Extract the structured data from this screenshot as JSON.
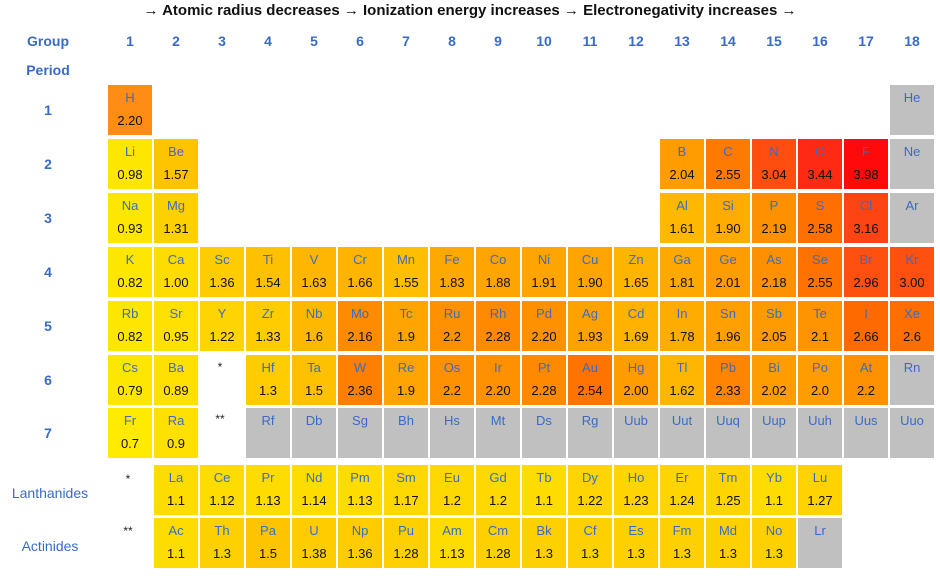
{
  "title": "→ Atomic radius decreases → Ionization energy increases → Electronegativity increases →",
  "group_label": "Group",
  "period_label": "Period",
  "groups": [
    "1",
    "2",
    "3",
    "4",
    "5",
    "6",
    "7",
    "8",
    "9",
    "10",
    "11",
    "12",
    "13",
    "14",
    "15",
    "16",
    "17",
    "18"
  ],
  "periods": [
    "1",
    "2",
    "3",
    "4",
    "5",
    "6",
    "7"
  ],
  "lanthanides_label": "Lanthanides",
  "actinides_label": "Actinides",
  "lanthanide_marker": "*",
  "actinide_marker": "**",
  "colors": {
    "yellow": "#ffe000",
    "amber": "#ffc000",
    "orange": "#ff9000",
    "dark_orange": "#ff6a10",
    "red": "#f03010",
    "gray": "#c0c0c0",
    "label_blue": "#3a6bc4"
  },
  "elements": [
    {
      "sym": "H",
      "en": "2.20",
      "row": 0,
      "col": 0,
      "c": "#ff8c14"
    },
    {
      "sym": "He",
      "en": "",
      "row": 0,
      "col": 17,
      "c": "#c0c0c0"
    },
    {
      "sym": "Li",
      "en": "0.98",
      "row": 1,
      "col": 0,
      "c": "#ffe600"
    },
    {
      "sym": "Be",
      "en": "1.57",
      "row": 1,
      "col": 1,
      "c": "#ffc400"
    },
    {
      "sym": "B",
      "en": "2.04",
      "row": 1,
      "col": 12,
      "c": "#ff9c00"
    },
    {
      "sym": "C",
      "en": "2.55",
      "row": 1,
      "col": 13,
      "c": "#ff7a00"
    },
    {
      "sym": "N",
      "en": "3.04",
      "row": 1,
      "col": 14,
      "c": "#ff4e10"
    },
    {
      "sym": "O",
      "en": "3.44",
      "row": 1,
      "col": 15,
      "c": "#ff2a14"
    },
    {
      "sym": "F",
      "en": "3.98",
      "row": 1,
      "col": 16,
      "c": "#ff0a0a"
    },
    {
      "sym": "Ne",
      "en": "",
      "row": 1,
      "col": 17,
      "c": "#c0c0c0"
    },
    {
      "sym": "Na",
      "en": "0.93",
      "row": 2,
      "col": 0,
      "c": "#ffe600"
    },
    {
      "sym": "Mg",
      "en": "1.31",
      "row": 2,
      "col": 1,
      "c": "#ffd000"
    },
    {
      "sym": "Al",
      "en": "1.61",
      "row": 2,
      "col": 12,
      "c": "#ffb800"
    },
    {
      "sym": "Si",
      "en": "1.90",
      "row": 2,
      "col": 13,
      "c": "#ffac00"
    },
    {
      "sym": "P",
      "en": "2.19",
      "row": 2,
      "col": 14,
      "c": "#ff9000"
    },
    {
      "sym": "S",
      "en": "2.58",
      "row": 2,
      "col": 15,
      "c": "#ff7000"
    },
    {
      "sym": "Cl",
      "en": "3.16",
      "row": 2,
      "col": 16,
      "c": "#ff4414"
    },
    {
      "sym": "Ar",
      "en": "",
      "row": 2,
      "col": 17,
      "c": "#c0c0c0"
    },
    {
      "sym": "K",
      "en": "0.82",
      "row": 3,
      "col": 0,
      "c": "#ffe600"
    },
    {
      "sym": "Ca",
      "en": "1.00",
      "row": 3,
      "col": 1,
      "c": "#ffdc00"
    },
    {
      "sym": "Sc",
      "en": "1.36",
      "row": 3,
      "col": 2,
      "c": "#ffcc00"
    },
    {
      "sym": "Ti",
      "en": "1.54",
      "row": 3,
      "col": 3,
      "c": "#ffc000"
    },
    {
      "sym": "V",
      "en": "1.63",
      "row": 3,
      "col": 4,
      "c": "#ffb600"
    },
    {
      "sym": "Cr",
      "en": "1.66",
      "row": 3,
      "col": 5,
      "c": "#ffb400"
    },
    {
      "sym": "Mn",
      "en": "1.55",
      "row": 3,
      "col": 6,
      "c": "#ffbe00"
    },
    {
      "sym": "Fe",
      "en": "1.83",
      "row": 3,
      "col": 7,
      "c": "#ffa800"
    },
    {
      "sym": "Co",
      "en": "1.88",
      "row": 3,
      "col": 8,
      "c": "#ffa400"
    },
    {
      "sym": "Ni",
      "en": "1.91",
      "row": 3,
      "col": 9,
      "c": "#ffa400"
    },
    {
      "sym": "Cu",
      "en": "1.90",
      "row": 3,
      "col": 10,
      "c": "#ffa400"
    },
    {
      "sym": "Zn",
      "en": "1.65",
      "row": 3,
      "col": 11,
      "c": "#ffb400"
    },
    {
      "sym": "Ga",
      "en": "1.81",
      "row": 3,
      "col": 12,
      "c": "#ffa800"
    },
    {
      "sym": "Ge",
      "en": "2.01",
      "row": 3,
      "col": 13,
      "c": "#ff9c00"
    },
    {
      "sym": "As",
      "en": "2.18",
      "row": 3,
      "col": 14,
      "c": "#ff9000"
    },
    {
      "sym": "Se",
      "en": "2.55",
      "row": 3,
      "col": 15,
      "c": "#ff7200"
    },
    {
      "sym": "Br",
      "en": "2.96",
      "row": 3,
      "col": 16,
      "c": "#ff5010"
    },
    {
      "sym": "Kr",
      "en": "3.00",
      "row": 3,
      "col": 17,
      "c": "#ff5010"
    },
    {
      "sym": "Rb",
      "en": "0.82",
      "row": 4,
      "col": 0,
      "c": "#ffe600"
    },
    {
      "sym": "Sr",
      "en": "0.95",
      "row": 4,
      "col": 1,
      "c": "#ffe000"
    },
    {
      "sym": "Y",
      "en": "1.22",
      "row": 4,
      "col": 2,
      "c": "#ffd400"
    },
    {
      "sym": "Zr",
      "en": "1.33",
      "row": 4,
      "col": 3,
      "c": "#ffcc00"
    },
    {
      "sym": "Nb",
      "en": "1.6",
      "row": 4,
      "col": 4,
      "c": "#ffb800"
    },
    {
      "sym": "Mo",
      "en": "2.16",
      "row": 4,
      "col": 5,
      "c": "#ff8c00"
    },
    {
      "sym": "Tc",
      "en": "1.9",
      "row": 4,
      "col": 6,
      "c": "#ffa400"
    },
    {
      "sym": "Ru",
      "en": "2.2",
      "row": 4,
      "col": 7,
      "c": "#ff9000"
    },
    {
      "sym": "Rh",
      "en": "2.28",
      "row": 4,
      "col": 8,
      "c": "#ff8a00"
    },
    {
      "sym": "Pd",
      "en": "2.20",
      "row": 4,
      "col": 9,
      "c": "#ff9000"
    },
    {
      "sym": "Ag",
      "en": "1.93",
      "row": 4,
      "col": 10,
      "c": "#ffa200"
    },
    {
      "sym": "Cd",
      "en": "1.69",
      "row": 4,
      "col": 11,
      "c": "#ffb200"
    },
    {
      "sym": "In",
      "en": "1.78",
      "row": 4,
      "col": 12,
      "c": "#ffac00"
    },
    {
      "sym": "Sn",
      "en": "1.96",
      "row": 4,
      "col": 13,
      "c": "#ffa000"
    },
    {
      "sym": "Sb",
      "en": "2.05",
      "row": 4,
      "col": 14,
      "c": "#ff9a00"
    },
    {
      "sym": "Te",
      "en": "2.1",
      "row": 4,
      "col": 15,
      "c": "#ff9400"
    },
    {
      "sym": "I",
      "en": "2.66",
      "row": 4,
      "col": 16,
      "c": "#ff6a00"
    },
    {
      "sym": "Xe",
      "en": "2.6",
      "row": 4,
      "col": 17,
      "c": "#ff6e00"
    },
    {
      "sym": "Cs",
      "en": "0.79",
      "row": 5,
      "col": 0,
      "c": "#ffe600"
    },
    {
      "sym": "Ba",
      "en": "0.89",
      "row": 5,
      "col": 1,
      "c": "#ffe000"
    },
    {
      "sym": "Hf",
      "en": "1.3",
      "row": 5,
      "col": 3,
      "c": "#ffcc00"
    },
    {
      "sym": "Ta",
      "en": "1.5",
      "row": 5,
      "col": 4,
      "c": "#ffc000"
    },
    {
      "sym": "W",
      "en": "2.36",
      "row": 5,
      "col": 5,
      "c": "#ff8000"
    },
    {
      "sym": "Re",
      "en": "1.9",
      "row": 5,
      "col": 6,
      "c": "#ffa400"
    },
    {
      "sym": "Os",
      "en": "2.2",
      "row": 5,
      "col": 7,
      "c": "#ff9000"
    },
    {
      "sym": "Ir",
      "en": "2.20",
      "row": 5,
      "col": 8,
      "c": "#ff9000"
    },
    {
      "sym": "Pt",
      "en": "2.28",
      "row": 5,
      "col": 9,
      "c": "#ff8a00"
    },
    {
      "sym": "Au",
      "en": "2.54",
      "row": 5,
      "col": 10,
      "c": "#ff7400"
    },
    {
      "sym": "Hg",
      "en": "2.00",
      "row": 5,
      "col": 11,
      "c": "#ff9c00"
    },
    {
      "sym": "Tl",
      "en": "1.62",
      "row": 5,
      "col": 12,
      "c": "#ffb600"
    },
    {
      "sym": "Pb",
      "en": "2.33",
      "row": 5,
      "col": 13,
      "c": "#ff8400"
    },
    {
      "sym": "Bi",
      "en": "2.02",
      "row": 5,
      "col": 14,
      "c": "#ff9c00"
    },
    {
      "sym": "Po",
      "en": "2.0",
      "row": 5,
      "col": 15,
      "c": "#ff9c00"
    },
    {
      "sym": "At",
      "en": "2.2",
      "row": 5,
      "col": 16,
      "c": "#ff9000"
    },
    {
      "sym": "Rn",
      "en": "",
      "row": 5,
      "col": 17,
      "c": "#c0c0c0"
    },
    {
      "sym": "Fr",
      "en": "0.7",
      "row": 6,
      "col": 0,
      "c": "#ffea00"
    },
    {
      "sym": "Ra",
      "en": "0.9",
      "row": 6,
      "col": 1,
      "c": "#ffe000"
    },
    {
      "sym": "Rf",
      "en": "",
      "row": 6,
      "col": 3,
      "c": "#c0c0c0"
    },
    {
      "sym": "Db",
      "en": "",
      "row": 6,
      "col": 4,
      "c": "#c0c0c0"
    },
    {
      "sym": "Sg",
      "en": "",
      "row": 6,
      "col": 5,
      "c": "#c0c0c0"
    },
    {
      "sym": "Bh",
      "en": "",
      "row": 6,
      "col": 6,
      "c": "#c0c0c0"
    },
    {
      "sym": "Hs",
      "en": "",
      "row": 6,
      "col": 7,
      "c": "#c0c0c0"
    },
    {
      "sym": "Mt",
      "en": "",
      "row": 6,
      "col": 8,
      "c": "#c0c0c0"
    },
    {
      "sym": "Ds",
      "en": "",
      "row": 6,
      "col": 9,
      "c": "#c0c0c0"
    },
    {
      "sym": "Rg",
      "en": "",
      "row": 6,
      "col": 10,
      "c": "#c0c0c0"
    },
    {
      "sym": "Uub",
      "en": "",
      "row": 6,
      "col": 11,
      "c": "#c0c0c0"
    },
    {
      "sym": "Uut",
      "en": "",
      "row": 6,
      "col": 12,
      "c": "#c0c0c0"
    },
    {
      "sym": "Uuq",
      "en": "",
      "row": 6,
      "col": 13,
      "c": "#c0c0c0"
    },
    {
      "sym": "Uup",
      "en": "",
      "row": 6,
      "col": 14,
      "c": "#c0c0c0"
    },
    {
      "sym": "Uuh",
      "en": "",
      "row": 6,
      "col": 15,
      "c": "#c0c0c0"
    },
    {
      "sym": "Uus",
      "en": "",
      "row": 6,
      "col": 16,
      "c": "#c0c0c0"
    },
    {
      "sym": "Uuo",
      "en": "",
      "row": 6,
      "col": 17,
      "c": "#c0c0c0"
    },
    {
      "sym": "La",
      "en": "1.1",
      "row": 7,
      "col": 1,
      "c": "#ffdc00"
    },
    {
      "sym": "Ce",
      "en": "1.12",
      "row": 7,
      "col": 2,
      "c": "#ffdc00"
    },
    {
      "sym": "Pr",
      "en": "1.13",
      "row": 7,
      "col": 3,
      "c": "#ffdc00"
    },
    {
      "sym": "Nd",
      "en": "1.14",
      "row": 7,
      "col": 4,
      "c": "#ffdc00"
    },
    {
      "sym": "Pm",
      "en": "1.13",
      "row": 7,
      "col": 5,
      "c": "#ffdc00"
    },
    {
      "sym": "Sm",
      "en": "1.17",
      "row": 7,
      "col": 6,
      "c": "#ffd800"
    },
    {
      "sym": "Eu",
      "en": "1.2",
      "row": 7,
      "col": 7,
      "c": "#ffd800"
    },
    {
      "sym": "Gd",
      "en": "1.2",
      "row": 7,
      "col": 8,
      "c": "#ffd800"
    },
    {
      "sym": "Tb",
      "en": "1.1",
      "row": 7,
      "col": 9,
      "c": "#ffdc00"
    },
    {
      "sym": "Dy",
      "en": "1.22",
      "row": 7,
      "col": 10,
      "c": "#ffd400"
    },
    {
      "sym": "Ho",
      "en": "1.23",
      "row": 7,
      "col": 11,
      "c": "#ffd400"
    },
    {
      "sym": "Er",
      "en": "1.24",
      "row": 7,
      "col": 12,
      "c": "#ffd400"
    },
    {
      "sym": "Tm",
      "en": "1.25",
      "row": 7,
      "col": 13,
      "c": "#ffd400"
    },
    {
      "sym": "Yb",
      "en": "1.1",
      "row": 7,
      "col": 14,
      "c": "#ffdc00"
    },
    {
      "sym": "Lu",
      "en": "1.27",
      "row": 7,
      "col": 15,
      "c": "#ffd200"
    },
    {
      "sym": "Ac",
      "en": "1.1",
      "row": 8,
      "col": 1,
      "c": "#ffdc00"
    },
    {
      "sym": "Th",
      "en": "1.3",
      "row": 8,
      "col": 2,
      "c": "#ffd000"
    },
    {
      "sym": "Pa",
      "en": "1.5",
      "row": 8,
      "col": 3,
      "c": "#ffc400"
    },
    {
      "sym": "U",
      "en": "1.38",
      "row": 8,
      "col": 4,
      "c": "#ffcc00"
    },
    {
      "sym": "Np",
      "en": "1.36",
      "row": 8,
      "col": 5,
      "c": "#ffcc00"
    },
    {
      "sym": "Pu",
      "en": "1.28",
      "row": 8,
      "col": 6,
      "c": "#ffd000"
    },
    {
      "sym": "Am",
      "en": "1.13",
      "row": 8,
      "col": 7,
      "c": "#ffdc00"
    },
    {
      "sym": "Cm",
      "en": "1.28",
      "row": 8,
      "col": 8,
      "c": "#ffd000"
    },
    {
      "sym": "Bk",
      "en": "1.3",
      "row": 8,
      "col": 9,
      "c": "#ffd000"
    },
    {
      "sym": "Cf",
      "en": "1.3",
      "row": 8,
      "col": 10,
      "c": "#ffd000"
    },
    {
      "sym": "Es",
      "en": "1.3",
      "row": 8,
      "col": 11,
      "c": "#ffd000"
    },
    {
      "sym": "Fm",
      "en": "1.3",
      "row": 8,
      "col": 12,
      "c": "#ffd000"
    },
    {
      "sym": "Md",
      "en": "1.3",
      "row": 8,
      "col": 13,
      "c": "#ffd000"
    },
    {
      "sym": "No",
      "en": "1.3",
      "row": 8,
      "col": 14,
      "c": "#ffd000"
    },
    {
      "sym": "Lr",
      "en": "",
      "row": 8,
      "col": 15,
      "c": "#c0c0c0"
    }
  ]
}
